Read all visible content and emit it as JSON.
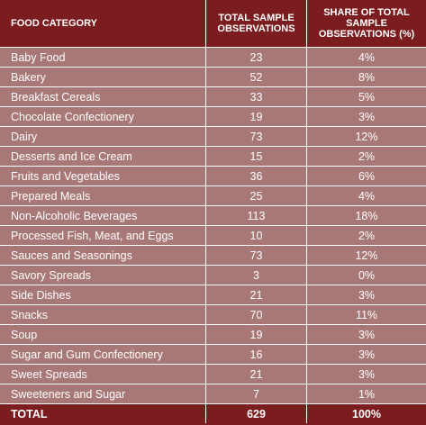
{
  "header": {
    "category": "FOOD CATEGORY",
    "observations": "TOTAL SAMPLE OBSERVATIONS",
    "share": "SHARE OF TOTAL SAMPLE OBSERVATIONS (%)"
  },
  "rows": [
    {
      "category": "Baby Food",
      "observations": "23",
      "share": "4%"
    },
    {
      "category": "Bakery",
      "observations": "52",
      "share": "8%"
    },
    {
      "category": "Breakfast Cereals",
      "observations": "33",
      "share": "5%"
    },
    {
      "category": "Chocolate Confectionery",
      "observations": "19",
      "share": "3%"
    },
    {
      "category": "Dairy",
      "observations": "73",
      "share": "12%"
    },
    {
      "category": "Desserts and Ice Cream",
      "observations": "15",
      "share": "2%"
    },
    {
      "category": "Fruits and Vegetables",
      "observations": "36",
      "share": "6%"
    },
    {
      "category": "Prepared Meals",
      "observations": "25",
      "share": "4%"
    },
    {
      "category": "Non-Alcoholic Beverages",
      "observations": "113",
      "share": "18%"
    },
    {
      "category": "Processed Fish, Meat, and  Eggs",
      "observations": "10",
      "share": "2%"
    },
    {
      "category": "Sauces and Seasonings",
      "observations": "73",
      "share": "12%"
    },
    {
      "category": "Savory Spreads",
      "observations": "3",
      "share": "0%"
    },
    {
      "category": "Side Dishes",
      "observations": "21",
      "share": "3%"
    },
    {
      "category": "Snacks",
      "observations": "70",
      "share": "11%"
    },
    {
      "category": "Soup",
      "observations": "19",
      "share": "3%"
    },
    {
      "category": "Sugar and Gum Confectionery",
      "observations": "16",
      "share": "3%"
    },
    {
      "category": "Sweet Spreads",
      "observations": "21",
      "share": "3%"
    },
    {
      "category": "Sweeteners and Sugar",
      "observations": "7",
      "share": "1%"
    }
  ],
  "total": {
    "category": "TOTAL",
    "observations": "629",
    "share": "100%"
  },
  "colors": {
    "header_bg": "#7b1c1f",
    "row_bg": "#a87876",
    "text": "#ffffff"
  }
}
